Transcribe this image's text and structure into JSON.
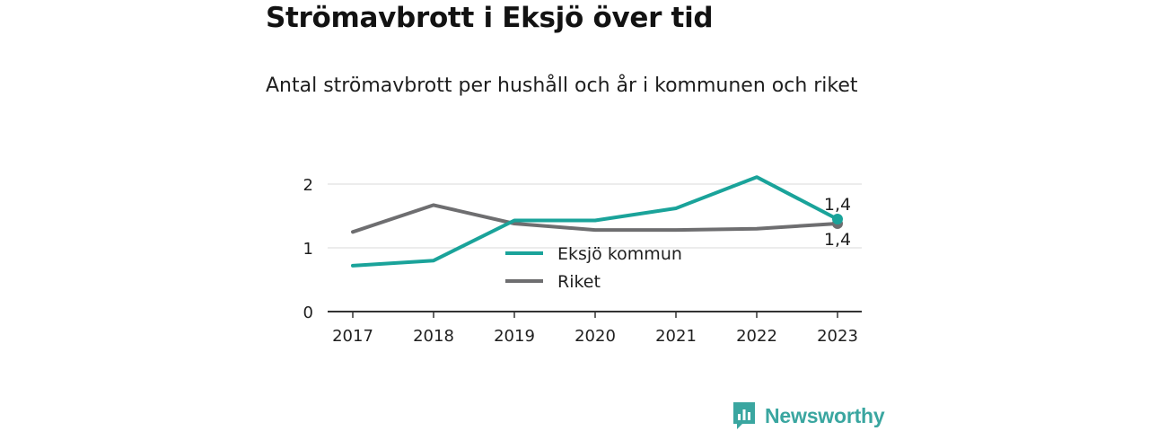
{
  "title": "Strömavbrott i Eksjö över tid",
  "subtitle": "Antal strömavbrott per hushåll och år i kommunen och riket",
  "brand": "Newsworthy",
  "colors": {
    "eksjo": "#1aa39a",
    "riket": "#6e6e70",
    "grid": "#d9d9d9",
    "axis": "#333333",
    "brand": "#3aa6a0"
  },
  "chart_data": {
    "type": "line",
    "x": [
      "2017",
      "2018",
      "2019",
      "2020",
      "2021",
      "2022",
      "2023"
    ],
    "ylim": [
      0,
      2.2
    ],
    "yticks": [
      0,
      1,
      2
    ],
    "ytick_labels": [
      "0",
      "1",
      "2"
    ],
    "grid": true,
    "legend_position": "center",
    "series": [
      {
        "name": "Eksjö kommun",
        "color": "#1aa39a",
        "values": [
          0.72,
          0.8,
          1.43,
          1.43,
          1.62,
          2.11,
          1.45
        ],
        "end_label": "1,4"
      },
      {
        "name": "Riket",
        "color": "#6e6e70",
        "values": [
          1.25,
          1.67,
          1.38,
          1.28,
          1.28,
          1.3,
          1.38
        ],
        "end_label": "1,4"
      }
    ]
  }
}
